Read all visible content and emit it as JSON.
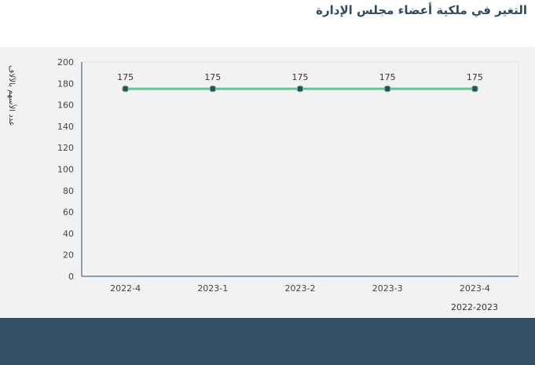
{
  "title": "التغير في ملكية أعضاء مجلس الإدارة",
  "chart_data": {
    "type": "line",
    "title": "التغير في ملكية أعضاء مجلس الإدارة",
    "categories": [
      "2022-4",
      "2023-1",
      "2023-2",
      "2023-3",
      "2023-4"
    ],
    "values": [
      175,
      175,
      175,
      175,
      175
    ],
    "data_labels": [
      "175",
      "175",
      "175",
      "175",
      "175"
    ],
    "ylabel": "عدد الأسهم بالآلاف",
    "xlabel": "2022-2023",
    "ylim": [
      0,
      200
    ],
    "yticks": [
      0,
      20,
      40,
      60,
      80,
      100,
      120,
      140,
      160,
      180,
      200
    ],
    "line_color": "#6bbf9a",
    "marker_color": "#2f4a5a",
    "grid": false
  }
}
